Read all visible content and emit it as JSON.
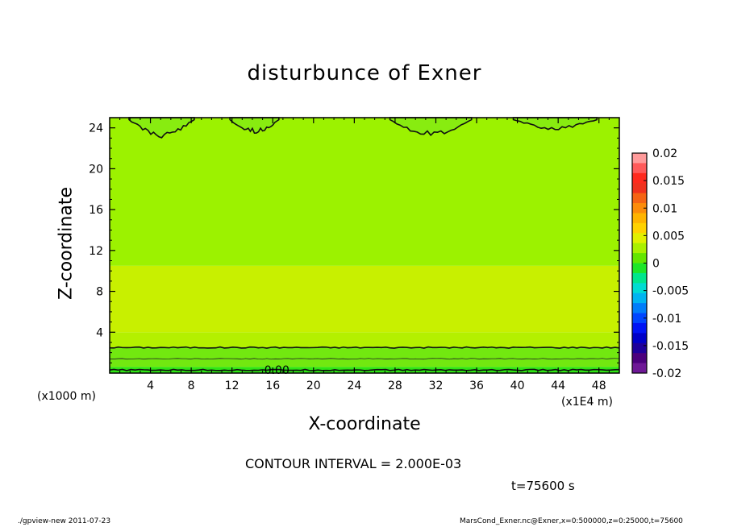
{
  "chart_data": {
    "type": "heatmap",
    "title": "disturbunce of Exner",
    "xlabel": "X-coordinate",
    "ylabel": "Z-coordinate",
    "x_unit_note": "(x1E4 m)",
    "y_unit_note": "(x1000 m)",
    "xlim": [
      0,
      50
    ],
    "ylim": [
      0,
      25
    ],
    "x_ticks": [
      4,
      8,
      12,
      16,
      20,
      24,
      28,
      32,
      36,
      40,
      44,
      48
    ],
    "y_ticks": [
      4,
      8,
      12,
      16,
      20,
      24
    ],
    "colorbar": {
      "ticks": [
        "0.02",
        "0.015",
        "0.01",
        "0.005",
        "0",
        "-0.005",
        "-0.01",
        "-0.015",
        "-0.02"
      ],
      "range": [
        -0.02,
        0.02
      ],
      "colors": [
        "#ff9b9b",
        "#ff5a5a",
        "#ff2a1e",
        "#f0321e",
        "#f56414",
        "#fc8c0a",
        "#ffb400",
        "#ffd200",
        "#e1f000",
        "#aaf000",
        "#64e600",
        "#1ee628",
        "#00e68c",
        "#00dcd2",
        "#00b4f0",
        "#007dfa",
        "#0046ff",
        "#0014f5",
        "#0000c8",
        "#1e009b",
        "#4b007d",
        "#6e1896"
      ]
    },
    "bands": [
      {
        "z_range": [
          0,
          0.6
        ],
        "level": 0.001,
        "color": "#2ee614"
      },
      {
        "z_range": [
          0.6,
          2.5
        ],
        "level": 0.003,
        "color": "#72e810"
      },
      {
        "z_range": [
          2.5,
          4
        ],
        "level": 0.004,
        "color": "#b4f000"
      },
      {
        "z_range": [
          4,
          10.5
        ],
        "level": 0.005,
        "color": "#c8f000"
      },
      {
        "z_range": [
          10.5,
          25
        ],
        "level": 0.004,
        "color": "#9cf200"
      }
    ],
    "contour_lines": [
      {
        "z": 2.5,
        "label": ""
      },
      {
        "z": 0.3,
        "label": "0.00"
      }
    ],
    "contour_interval": "2.000E-03"
  },
  "annotations": {
    "x_unit_left": "(x1000 m)",
    "x_unit_right": "(x1E4 m)",
    "contour_interval_text": "CONTOUR INTERVAL = 2.000E-03",
    "time_text": "t=75600 s"
  },
  "footer": {
    "left": "./gpview-new  2011-07-23",
    "right": "MarsCond_Exner.nc@Exner,x=0:500000,z=0:25000,t=75600"
  }
}
